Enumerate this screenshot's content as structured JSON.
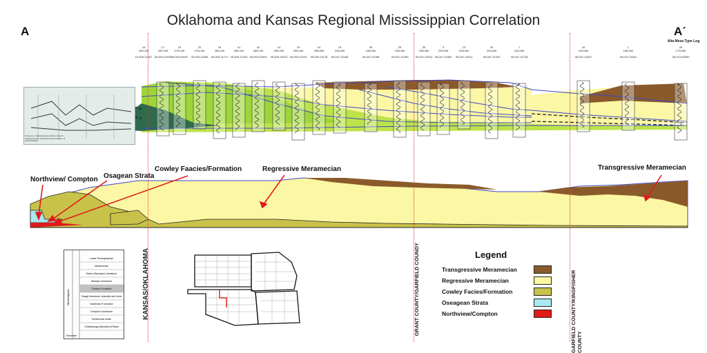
{
  "title": "Oklahoma and Kansas Regional Mississippian Correlation",
  "section_start": "A",
  "section_end": "A´",
  "type_log_label": "Alta Mesa Type Log",
  "wells": [
    {
      "id": "w1",
      "sec": "16",
      "twp": "33S-3W",
      "api": "15-003-21407"
    },
    {
      "id": "w2",
      "sec": "17",
      "twp": "33S-3W",
      "api": "35-003-22375"
    },
    {
      "id": "w3",
      "sec": "19",
      "twp": "27N-1W",
      "api": "35-003-60187"
    },
    {
      "id": "w4",
      "sec": "20",
      "twp": "27N-1W",
      "api": "35-003-21636"
    },
    {
      "id": "w5",
      "sec": "16",
      "twp": "26N-1W",
      "api": "35-003-21717"
    },
    {
      "id": "w6",
      "sec": "21",
      "twp": "26N-1W",
      "api": "35-003-21324"
    },
    {
      "id": "w7",
      "sec": "32",
      "twp": "26N-1W",
      "api": "35-003-22819"
    },
    {
      "id": "w8",
      "sec": "14",
      "twp": "25N-3W",
      "api": "35-003-20012"
    },
    {
      "id": "w9",
      "sec": "23",
      "twp": "25N-4W",
      "api": "35-003-21220"
    },
    {
      "id": "w10",
      "sec": "24",
      "twp": "25N-5W",
      "api": "35-003-21178"
    },
    {
      "id": "w11",
      "sec": "15",
      "twp": "24N-5W",
      "api": "35-047-22180"
    },
    {
      "id": "w12",
      "sec": "35",
      "twp": "24N-5W",
      "api": "35-047-22788"
    },
    {
      "id": "w13",
      "sec": "25",
      "twp": "23N-5W",
      "api": "35-047-21250"
    },
    {
      "id": "w14",
      "sec": "30",
      "twp": "23N-5W",
      "api": "35-047-21512"
    },
    {
      "id": "w15",
      "sec": "3",
      "twp": "22N-5W",
      "api": "35-047-21800"
    },
    {
      "id": "w16",
      "sec": "13",
      "twp": "22N-5W",
      "api": "35-047-24411"
    },
    {
      "id": "w17",
      "sec": "25",
      "twp": "22N-6W",
      "api": "35-047-21202"
    },
    {
      "id": "w18",
      "sec": "7",
      "twp": "21N-6W",
      "api": "35-047-21725"
    },
    {
      "id": "w19",
      "sec": "34",
      "twp": "21N-6W",
      "api": "35-047-22327"
    },
    {
      "id": "w20",
      "sec": "1",
      "twp": "18N-6W",
      "api": "35-073-24241"
    },
    {
      "id": "w21",
      "sec": "25",
      "twp": "17N-6W",
      "api": "35-073-00000"
    }
  ],
  "county_lines": {
    "kansas_oklahoma": "KANSAS/OKLAHOMA",
    "grant_garfield": "GRANT COUNTY/GARFIELD COUNDY",
    "garfield_kingfisher": "GARFIELD COUNTY/KINGFISHER COUNTY"
  },
  "annotations": {
    "northview": "Northview/ Compton",
    "osagean": "Osagean Strata",
    "cowley": "Cowley Faacies/Formation",
    "regressive": "Regressive Meramecian",
    "transgressive": "Transgressive Meramecian"
  },
  "legend": {
    "title": "Legend",
    "items": [
      {
        "label": "Transgressive Meramecian",
        "color": "#8b5a2b"
      },
      {
        "label": "Regressive Meramecian",
        "color": "#fbf7a4"
      },
      {
        "label": "Cowley Facies/Formation",
        "color": "#c8c24a"
      },
      {
        "label": "Oseagean Strata",
        "color": "#a8e8f0"
      },
      {
        "label": "Northview/Compton",
        "color": "#e01a1a"
      }
    ]
  },
  "inset_caption": "Presence of Mississippian Strata in South Central Kansas. Reprinted by Permission of AAPG Bulletin.",
  "strat_column": {
    "system_label": "Mississippian",
    "rows": [
      "Lower Pennsylvanian",
      "Meramecian",
      "Salem (Spergen) Limestone",
      "Warsaw Limestone",
      "Cowley Formation",
      "Osage limestone, dolomite and chert",
      "Northview Formation",
      "Compton Limestone",
      "Kinderhook shale",
      "Chattanooga (Woodford) Shale"
    ],
    "base_label": "Devonian"
  },
  "colors": {
    "transgressive": "#8b5a2b",
    "regressive": "#fbf7a4",
    "cowley": "#c8c24a",
    "osagean": "#a8e8f0",
    "northview": "#e01a1a",
    "marker_line": "#3b45c8",
    "county_line": "#d93b3b"
  }
}
